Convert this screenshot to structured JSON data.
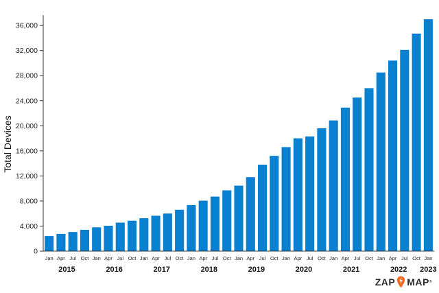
{
  "chart_data": {
    "type": "bar",
    "ylabel": "Total Devices",
    "xlabel": "",
    "ylim": [
      0,
      37000
    ],
    "yticks": [
      0,
      4000,
      8000,
      12000,
      16000,
      20000,
      24000,
      28000,
      32000,
      36000
    ],
    "ytick_labels": [
      "0",
      "4,000",
      "8,000",
      "12,000",
      "16,000",
      "20,000",
      "24,000",
      "28,000",
      "32,000",
      "36,000"
    ],
    "color": "#0a80d0",
    "grid": false,
    "categories": [
      "Jan",
      "Apr",
      "Jul",
      "Oct",
      "Jan",
      "Apr",
      "Jul",
      "Oct",
      "Jan",
      "Apr",
      "Jul",
      "Oct",
      "Jan",
      "Apr",
      "Jul",
      "Oct",
      "Jan",
      "Apr",
      "Jul",
      "Oct",
      "Jan",
      "Apr",
      "Jul",
      "Oct",
      "Jan",
      "Apr",
      "Jul",
      "Oct",
      "Jan",
      "Apr",
      "Jul",
      "Oct",
      "Jan"
    ],
    "values": [
      2400,
      2750,
      3050,
      3400,
      3800,
      4050,
      4550,
      4850,
      5250,
      5650,
      6000,
      6600,
      7350,
      8050,
      8700,
      9700,
      10450,
      11800,
      13800,
      15200,
      16600,
      18000,
      18300,
      19600,
      20850,
      22900,
      24500,
      26000,
      28500,
      30400,
      32100,
      34700,
      37000
    ],
    "years": [
      {
        "label": "2015",
        "start": 0,
        "end": 3
      },
      {
        "label": "2016",
        "start": 4,
        "end": 7
      },
      {
        "label": "2017",
        "start": 8,
        "end": 11
      },
      {
        "label": "2018",
        "start": 12,
        "end": 15
      },
      {
        "label": "2019",
        "start": 16,
        "end": 19
      },
      {
        "label": "2020",
        "start": 20,
        "end": 23
      },
      {
        "label": "2021",
        "start": 24,
        "end": 27
      },
      {
        "label": "2022",
        "start": 28,
        "end": 31
      },
      {
        "label": "2023",
        "start": 32,
        "end": 32
      }
    ]
  },
  "logo": {
    "text_left": "ZAP",
    "text_right": "MAP",
    "mark": "®",
    "bolt_icon": "lightning-bolt-icon",
    "bolt_color": "#f26b21"
  }
}
